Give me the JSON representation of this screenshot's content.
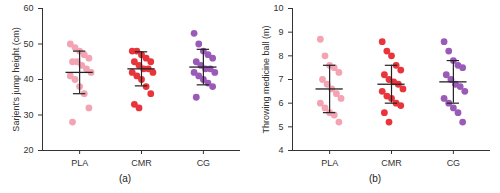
{
  "chart_data": [
    {
      "type": "scatter",
      "label": "(a)",
      "y_label": "Sarjent's jump height (cm)",
      "categories": [
        "PLA",
        "CMR",
        "CG"
      ],
      "colors": [
        "#f4a3b3",
        "#e8343a",
        "#9a5bb8"
      ],
      "values": [
        [
          50,
          49,
          48,
          47,
          46,
          45,
          45,
          44,
          43,
          42,
          41,
          40,
          38,
          36,
          32,
          28
        ],
        [
          48,
          48,
          47,
          46,
          45,
          45,
          44,
          43,
          43,
          42,
          42,
          41,
          40,
          38,
          36,
          33,
          32
        ],
        [
          53,
          50,
          48,
          47,
          46,
          45,
          44,
          43,
          43,
          42,
          42,
          41,
          40,
          39,
          38,
          35
        ]
      ],
      "mean": [
        42,
        43,
        43.5
      ],
      "sd": [
        6,
        4.8,
        5
      ],
      "ylim": [
        20,
        60
      ],
      "yticks": [
        20,
        30,
        40,
        50,
        60
      ]
    },
    {
      "type": "scatter",
      "label": "(b)",
      "y_label": "Throwing medicine ball (m)",
      "categories": [
        "PLA",
        "CMR",
        "CG"
      ],
      "colors": [
        "#f4a3b3",
        "#e8343a",
        "#9a5bb8"
      ],
      "values": [
        [
          8.7,
          8.0,
          7.6,
          7.5,
          7.3,
          7.0,
          6.8,
          6.6,
          6.4,
          6.2,
          6.0,
          5.8,
          5.6,
          5.5,
          5.2
        ],
        [
          8.6,
          8.2,
          8.0,
          7.6,
          7.4,
          7.2,
          7.0,
          6.9,
          6.8,
          6.6,
          6.5,
          6.3,
          6.2,
          6.0,
          5.9,
          5.6,
          5.2
        ],
        [
          8.6,
          8.2,
          7.8,
          7.6,
          7.5,
          7.2,
          7.0,
          6.8,
          6.7,
          6.5,
          6.2,
          6.0,
          5.8,
          5.6,
          5.2
        ]
      ],
      "mean": [
        6.6,
        6.8,
        6.9
      ],
      "sd": [
        1.0,
        0.8,
        0.9
      ],
      "ylim": [
        4,
        10
      ],
      "yticks": [
        4,
        5,
        6,
        7,
        8,
        9,
        10
      ]
    }
  ]
}
